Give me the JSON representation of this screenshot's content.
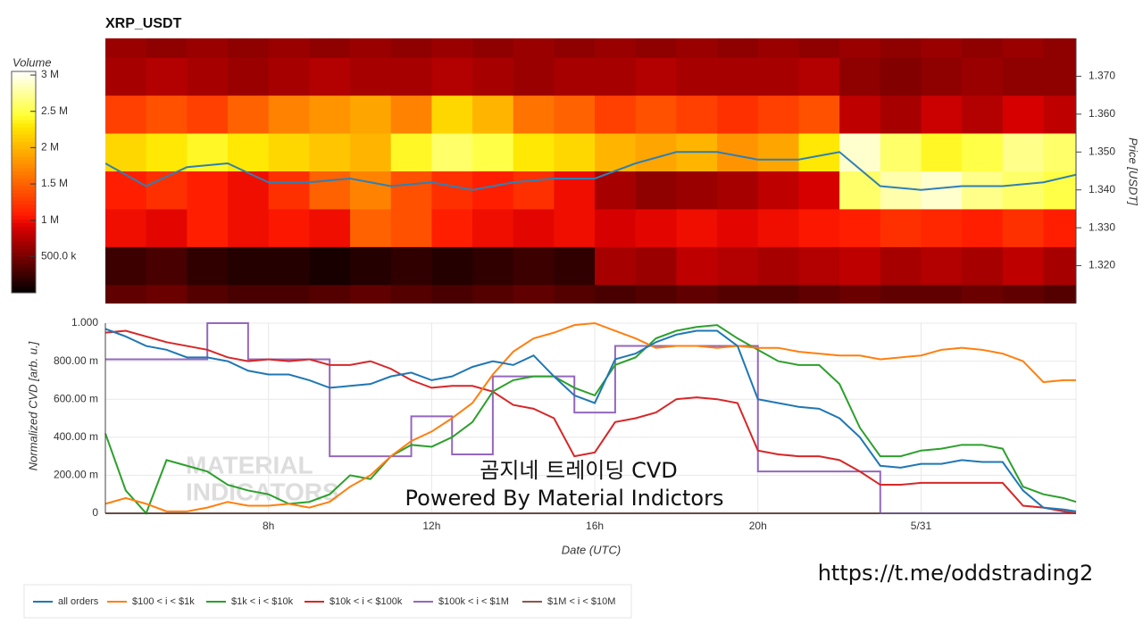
{
  "chart_data": [
    {
      "type": "heatmap",
      "title": "XRP_USDT",
      "ylabel": "Price [USDT]",
      "x": [
        4.5,
        5.5,
        6.5,
        7.5,
        8.5,
        9.5,
        10.5,
        11.5,
        12.5,
        13.5,
        14.5,
        15.5,
        16.5,
        17.5,
        18.5,
        19.5,
        20.5,
        21.5,
        22.5,
        23.5,
        24.5,
        25.5,
        26.5,
        27.5
      ],
      "y": [
        1.31,
        1.32,
        1.33,
        1.34,
        1.35,
        1.36,
        1.37,
        1.38
      ],
      "z": [
        [
          400000,
          450000,
          350000,
          300000,
          300000,
          350000,
          400000,
          350000,
          300000,
          350000,
          400000,
          350000,
          300000,
          350000,
          400000,
          350000,
          350000,
          400000,
          450000,
          400000,
          400000,
          450000,
          400000,
          350000
        ],
        [
          250000,
          300000,
          200000,
          150000,
          150000,
          100000,
          150000,
          200000,
          150000,
          200000,
          250000,
          200000,
          700000,
          650000,
          800000,
          750000,
          700000,
          750000,
          800000,
          700000,
          750000,
          700000,
          800000,
          700000
        ],
        [
          1000000,
          950000,
          1100000,
          1000000,
          1050000,
          1000000,
          1500000,
          1400000,
          1100000,
          1000000,
          950000,
          1000000,
          900000,
          950000,
          1000000,
          950000,
          1000000,
          1050000,
          1100000,
          1200000,
          1150000,
          1100000,
          1200000,
          1100000
        ],
        [
          1100000,
          1200000,
          1100000,
          1000000,
          1200000,
          1500000,
          1700000,
          1400000,
          1200000,
          1100000,
          1200000,
          1000000,
          700000,
          600000,
          650000,
          700000,
          800000,
          900000,
          2600000,
          2800000,
          2900000,
          2700000,
          2600000,
          2500000
        ],
        [
          2200000,
          2300000,
          2400000,
          2300000,
          2200000,
          2100000,
          2000000,
          2400000,
          2600000,
          2500000,
          2300000,
          2200000,
          2000000,
          1900000,
          2000000,
          1800000,
          1900000,
          2300000,
          2900000,
          2600000,
          2400000,
          2500000,
          2700000,
          2600000
        ],
        [
          1300000,
          1400000,
          1300000,
          1500000,
          1700000,
          1800000,
          1900000,
          1700000,
          2200000,
          2000000,
          1600000,
          1500000,
          1300000,
          1400000,
          1300000,
          1200000,
          1300000,
          1400000,
          800000,
          700000,
          850000,
          750000,
          900000,
          800000
        ],
        [
          700000,
          750000,
          700000,
          650000,
          700000,
          750000,
          700000,
          700000,
          750000,
          700000,
          650000,
          700000,
          700000,
          750000,
          700000,
          700000,
          700000,
          750000,
          600000,
          550000,
          600000,
          650000,
          600000,
          600000
        ],
        [
          650000,
          600000,
          650000,
          600000,
          650000,
          600000,
          650000,
          600000,
          650000,
          600000,
          650000,
          600000,
          650000,
          600000,
          650000,
          600000,
          650000,
          600000,
          650000,
          600000,
          650000,
          600000,
          650000,
          600000
        ]
      ],
      "xlim": [
        4,
        27.8
      ],
      "ylim": [
        1.31,
        1.38
      ],
      "yticks": [
        {
          "value": 1.32,
          "label": "1.320"
        },
        {
          "value": 1.33,
          "label": "1.330"
        },
        {
          "value": 1.34,
          "label": "1.340"
        },
        {
          "value": 1.35,
          "label": "1.350"
        },
        {
          "value": 1.36,
          "label": "1.360"
        },
        {
          "value": 1.37,
          "label": "1.370"
        }
      ],
      "colorbar": {
        "label": "Volume",
        "zlim": [
          0,
          3050000
        ],
        "ticks": [
          {
            "value": 500000,
            "label": "500.0 k"
          },
          {
            "value": 1000000,
            "label": "1 M"
          },
          {
            "value": 1500000,
            "label": "1.5 M"
          },
          {
            "value": 2000000,
            "label": "2 M"
          },
          {
            "value": 2500000,
            "label": "2.5 M"
          },
          {
            "value": 3000000,
            "label": "3 M"
          }
        ]
      },
      "series": [
        {
          "color": "#2f7fb5",
          "x": [
            4,
            5,
            6,
            7,
            8,
            9,
            10,
            11,
            12,
            13,
            14,
            15,
            16,
            17,
            18,
            19,
            20,
            21,
            22,
            23,
            24,
            25,
            26,
            27,
            27.8
          ],
          "values": [
            1.347,
            1.341,
            1.346,
            1.347,
            1.342,
            1.342,
            1.343,
            1.341,
            1.342,
            1.34,
            1.342,
            1.343,
            1.343,
            1.347,
            1.35,
            1.35,
            1.348,
            1.348,
            1.35,
            1.341,
            1.34,
            1.341,
            1.341,
            1.342,
            1.344
          ]
        }
      ]
    },
    {
      "type": "line",
      "xlabel": "Date (UTC)",
      "ylabel": "Normalized CVD [arb. u.]",
      "watermark": [
        "MATERIAL",
        "INDICATORS"
      ],
      "annotations": [
        "곰지네 트레이딩 CVD",
        "Powered By Material Indictors",
        "https://t.me/oddstrading2"
      ],
      "x": [
        4,
        4.5,
        5,
        5.5,
        6,
        6.5,
        7,
        7.5,
        8,
        8.5,
        9,
        9.5,
        10,
        10.5,
        11,
        11.5,
        12,
        12.5,
        13,
        13.5,
        14,
        14.5,
        15,
        15.5,
        16,
        16.5,
        17,
        17.5,
        18,
        18.5,
        19,
        19.5,
        20,
        20.5,
        21,
        21.5,
        22,
        22.5,
        23,
        23.5,
        24,
        24.5,
        25,
        25.5,
        26,
        26.5,
        27,
        27.5,
        27.8
      ],
      "xlim": [
        4,
        27.8
      ],
      "ylim": [
        0,
        1
      ],
      "xticks": [
        {
          "value": 8,
          "label": "8h"
        },
        {
          "value": 12,
          "label": "12h"
        },
        {
          "value": 16,
          "label": "16h"
        },
        {
          "value": 20,
          "label": "20h"
        },
        {
          "value": 24,
          "label": "5/31"
        }
      ],
      "yticks": [
        0,
        {
          "value": 0.2,
          "label": "200.00 m"
        },
        {
          "value": 0.4,
          "label": "400.00 m"
        },
        {
          "value": 0.6,
          "label": "600.00 m"
        },
        {
          "value": 0.8,
          "label": "800.00 m"
        },
        {
          "value": 1,
          "label": "1.000"
        }
      ],
      "grid": true,
      "series": [
        {
          "name": "all orders",
          "color": "#1f77b4",
          "values": [
            0.97,
            0.93,
            0.88,
            0.86,
            0.82,
            0.82,
            0.8,
            0.75,
            0.73,
            0.73,
            0.7,
            0.66,
            0.67,
            0.68,
            0.72,
            0.74,
            0.7,
            0.72,
            0.77,
            0.8,
            0.78,
            0.83,
            0.72,
            0.62,
            0.58,
            0.81,
            0.84,
            0.9,
            0.94,
            0.96,
            0.96,
            0.88,
            0.6,
            0.58,
            0.56,
            0.55,
            0.5,
            0.4,
            0.25,
            0.24,
            0.26,
            0.26,
            0.28,
            0.27,
            0.27,
            0.12,
            0.03,
            0.02,
            0.01
          ]
        },
        {
          "name": "$100 < i < $1k",
          "color": "#ff7f0e",
          "values": [
            0.05,
            0.08,
            0.05,
            0.01,
            0.01,
            0.03,
            0.06,
            0.04,
            0.04,
            0.05,
            0.03,
            0.06,
            0.14,
            0.2,
            0.3,
            0.38,
            0.43,
            0.5,
            0.58,
            0.73,
            0.85,
            0.92,
            0.95,
            0.99,
            1.0,
            0.96,
            0.92,
            0.87,
            0.88,
            0.88,
            0.87,
            0.88,
            0.87,
            0.87,
            0.85,
            0.84,
            0.83,
            0.83,
            0.81,
            0.82,
            0.83,
            0.86,
            0.87,
            0.86,
            0.84,
            0.8,
            0.69,
            0.7,
            0.7
          ]
        },
        {
          "name": "$1k < i < $10k",
          "color": "#2ca02c",
          "values": [
            0.42,
            0.12,
            0.0,
            0.28,
            0.25,
            0.22,
            0.15,
            0.12,
            0.1,
            0.05,
            0.06,
            0.1,
            0.2,
            0.18,
            0.3,
            0.36,
            0.35,
            0.4,
            0.48,
            0.64,
            0.7,
            0.72,
            0.72,
            0.66,
            0.62,
            0.78,
            0.82,
            0.92,
            0.96,
            0.98,
            0.99,
            0.92,
            0.86,
            0.8,
            0.78,
            0.78,
            0.68,
            0.45,
            0.3,
            0.3,
            0.33,
            0.34,
            0.36,
            0.36,
            0.34,
            0.14,
            0.1,
            0.08,
            0.06
          ]
        },
        {
          "name": "$10k < i < $100k",
          "color": "#d62728",
          "values": [
            0.95,
            0.96,
            0.93,
            0.9,
            0.88,
            0.86,
            0.82,
            0.8,
            0.81,
            0.8,
            0.81,
            0.78,
            0.78,
            0.8,
            0.76,
            0.7,
            0.66,
            0.67,
            0.67,
            0.64,
            0.57,
            0.55,
            0.5,
            0.3,
            0.32,
            0.48,
            0.5,
            0.53,
            0.6,
            0.61,
            0.6,
            0.58,
            0.33,
            0.31,
            0.3,
            0.3,
            0.28,
            0.22,
            0.15,
            0.15,
            0.16,
            0.16,
            0.16,
            0.16,
            0.16,
            0.04,
            0.03,
            0.01,
            0.0
          ]
        },
        {
          "name": "$100k < i < $1M",
          "color": "#9467bd",
          "step": true,
          "values": [
            0.81,
            0.81,
            0.81,
            0.81,
            0.81,
            1.0,
            1.0,
            0.81,
            0.81,
            0.81,
            0.81,
            0.3,
            0.3,
            0.3,
            0.3,
            0.51,
            0.51,
            0.31,
            0.31,
            0.72,
            0.72,
            0.72,
            0.72,
            0.53,
            0.53,
            0.88,
            0.88,
            0.88,
            0.88,
            0.88,
            0.88,
            0.88,
            0.22,
            0.22,
            0.22,
            0.22,
            0.22,
            0.22,
            0,
            0,
            0,
            0,
            0,
            0,
            0,
            0,
            0,
            0,
            0
          ]
        },
        {
          "name": "$1M < i < $10M",
          "color": "#8c564b",
          "values": [
            0,
            0,
            0,
            0,
            0,
            0,
            0,
            0,
            0,
            0,
            0,
            0,
            0,
            0,
            0,
            0,
            0,
            0,
            0,
            0,
            0,
            0,
            0,
            0,
            0,
            0,
            0,
            0,
            0,
            0,
            0,
            0,
            0,
            0,
            0,
            0,
            0,
            0,
            0,
            0,
            0,
            0,
            0,
            0,
            0,
            0,
            0,
            0,
            0
          ]
        }
      ]
    }
  ]
}
